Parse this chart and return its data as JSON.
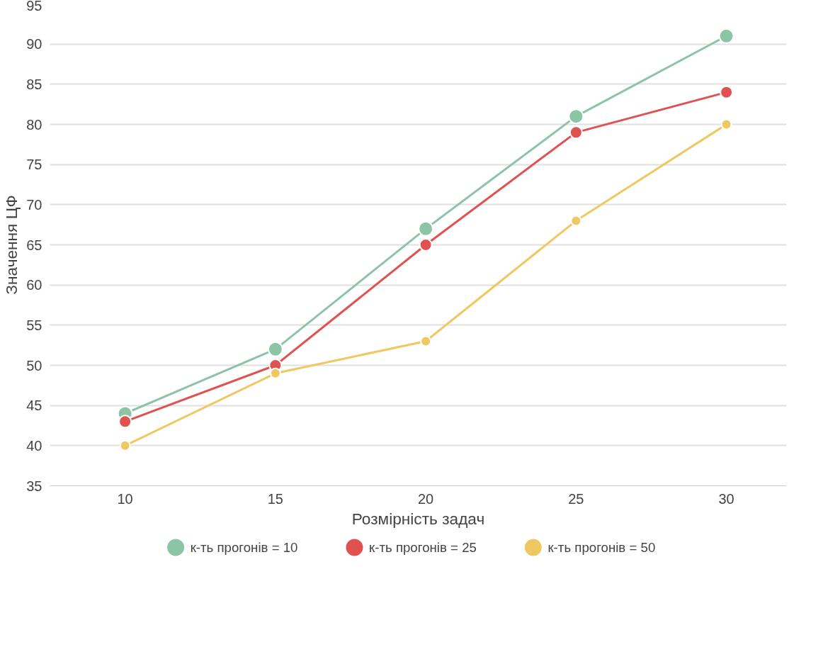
{
  "chart_data": {
    "type": "line",
    "xlabel": "Розмірність задач",
    "ylabel": "Значення ЦФ",
    "x": [
      10,
      15,
      20,
      25,
      30
    ],
    "xlim": [
      7.5,
      32
    ],
    "xticks": [
      10,
      15,
      20,
      25,
      30
    ],
    "ylim": [
      35,
      95
    ],
    "yticks": [
      35,
      40,
      45,
      50,
      55,
      60,
      65,
      70,
      75,
      80,
      85,
      90,
      95
    ],
    "grid": "y",
    "legend": "bottom",
    "marker": "circle",
    "line_style": "solid",
    "series": [
      {
        "name": "к-ть прогонів = 10",
        "color": "#8cc5a6",
        "values": [
          44,
          52,
          67,
          81,
          91
        ]
      },
      {
        "name": "к-ть прогонів = 25",
        "color": "#e05252",
        "values": [
          43,
          50,
          65,
          79,
          84
        ]
      },
      {
        "name": "к-ть прогонів = 50",
        "color": "#f0c862",
        "values": [
          40,
          49,
          53,
          68,
          80
        ]
      }
    ]
  }
}
